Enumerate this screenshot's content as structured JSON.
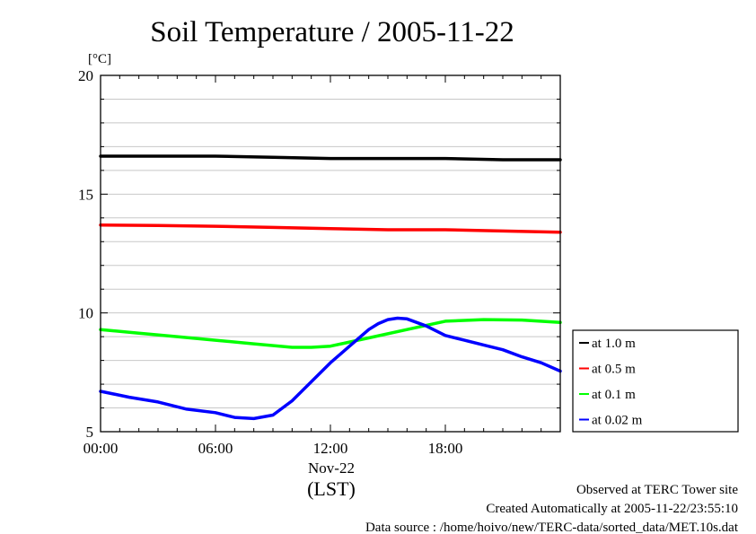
{
  "chart_data": {
    "type": "line",
    "title": "Soil Temperature / 2005-11-22",
    "ylabel": "[°C]",
    "xlabel": "(LST)",
    "x_date_label": "Nov-22",
    "ylim": [
      5,
      20
    ],
    "xlim": [
      0,
      24
    ],
    "y_ticks": [
      5,
      10,
      15,
      20
    ],
    "y_tick_labels": [
      "5",
      "10",
      "15",
      "20"
    ],
    "x_ticks": [
      0,
      6,
      12,
      18
    ],
    "x_tick_labels": [
      "00:00",
      "06:00",
      "12:00",
      "18:00"
    ],
    "grid": true,
    "legend_position": "right",
    "series": [
      {
        "name": "at 1.0 m",
        "color": "#000000",
        "x": [
          0,
          3,
          6,
          9,
          12,
          15,
          18,
          21,
          24
        ],
        "values": [
          16.6,
          16.6,
          16.6,
          16.55,
          16.5,
          16.5,
          16.5,
          16.45,
          16.45
        ]
      },
      {
        "name": "at 0.5 m",
        "color": "#ff0000",
        "x": [
          0,
          3,
          6,
          9,
          12,
          15,
          18,
          21,
          24
        ],
        "values": [
          13.7,
          13.68,
          13.65,
          13.6,
          13.55,
          13.5,
          13.5,
          13.45,
          13.4
        ]
      },
      {
        "name": "at 0.1 m",
        "color": "#00ff00",
        "x": [
          0,
          2,
          4,
          6,
          8,
          10,
          11,
          12,
          14,
          16,
          18,
          20,
          22,
          24
        ],
        "values": [
          9.3,
          9.15,
          9.0,
          8.85,
          8.7,
          8.55,
          8.55,
          8.6,
          8.95,
          9.3,
          9.65,
          9.72,
          9.7,
          9.6
        ]
      },
      {
        "name": "at 0.02 m",
        "color": "#0000ff",
        "x": [
          0,
          1.5,
          3,
          4.5,
          6,
          7,
          8,
          9,
          10,
          11,
          12,
          13,
          14,
          14.5,
          15,
          15.5,
          16,
          17,
          18,
          19,
          20,
          21,
          22,
          23,
          24
        ],
        "values": [
          6.7,
          6.45,
          6.25,
          5.95,
          5.8,
          5.6,
          5.55,
          5.7,
          6.3,
          7.1,
          7.9,
          8.6,
          9.3,
          9.55,
          9.72,
          9.78,
          9.75,
          9.45,
          9.05,
          8.85,
          8.65,
          8.45,
          8.15,
          7.9,
          7.55
        ]
      }
    ]
  },
  "footer": {
    "observed": "Observed at TERC Tower site",
    "created": "Created Automatically at 2005-11-22/23:55:10",
    "source": "Data source : /home/hoivo/new/TERC-data/sorted_data/MET.10s.dat"
  }
}
